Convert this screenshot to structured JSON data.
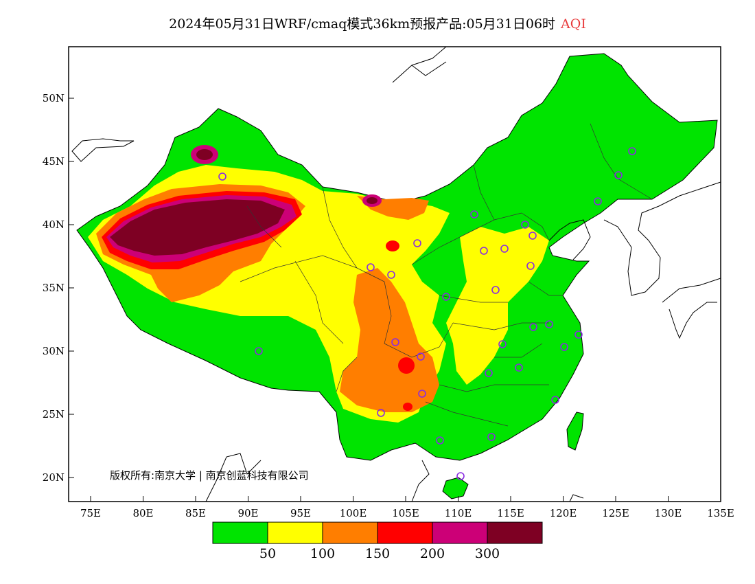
{
  "title": {
    "text": "2024年05月31日WRF/cmaq模式36km预报产品:05月31日06时",
    "variable": "AQI"
  },
  "map": {
    "lon_range": [
      73,
      135
    ],
    "lat_range": [
      18,
      54
    ],
    "lon_ticks": [
      "75E",
      "80E",
      "85E",
      "90E",
      "95E",
      "100E",
      "105E",
      "110E",
      "115E",
      "120E",
      "125E",
      "130E",
      "135E"
    ],
    "lat_ticks": [
      "20N",
      "25N",
      "30N",
      "35N",
      "40N",
      "45N",
      "50N"
    ],
    "copyright": "版权所有:南京大学 | 南京创蓝科技有限公司"
  },
  "legend": {
    "labels": [
      "50",
      "100",
      "150",
      "200",
      "300"
    ],
    "colors": [
      "#00e400",
      "#ffff00",
      "#ff7e00",
      "#ff0000",
      "#cc0077",
      "#7e0023"
    ]
  },
  "colors": {
    "good": "#00e400",
    "moderate": "#ffff00",
    "sensitive": "#ff7e00",
    "unhealthy": "#ff0000",
    "very_unhealthy": "#cc0077",
    "hazardous": "#7e0023",
    "station_marker": "#8a2be2"
  }
}
